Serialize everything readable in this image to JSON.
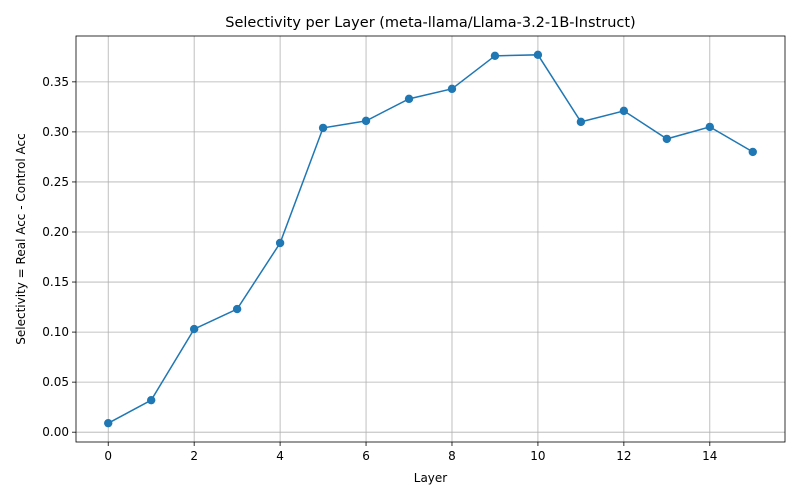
{
  "chart_data": {
    "type": "line",
    "title": "Selectivity per Layer (meta-llama/Llama-3.2-1B-Instruct)",
    "xlabel": "Layer",
    "ylabel": "Selectivity = Real Acc - Control Acc",
    "x": [
      0,
      1,
      2,
      3,
      4,
      5,
      6,
      7,
      8,
      9,
      10,
      11,
      12,
      13,
      14,
      15
    ],
    "series": [
      {
        "values": [
          0.009,
          0.032,
          0.103,
          0.123,
          0.189,
          0.304,
          0.311,
          0.333,
          0.343,
          0.376,
          0.377,
          0.31,
          0.321,
          0.293,
          0.305,
          0.28
        ],
        "color": "#1f77b4",
        "marker": "circle"
      }
    ],
    "xlim": [
      -0.75,
      15.75
    ],
    "ylim": [
      -0.0098,
      0.3958
    ],
    "xticks": [
      0,
      2,
      4,
      6,
      8,
      10,
      12,
      14
    ],
    "xtick_labels": [
      "0",
      "2",
      "4",
      "6",
      "8",
      "10",
      "12",
      "14"
    ],
    "yticks": [
      0.0,
      0.05,
      0.1,
      0.15,
      0.2,
      0.25,
      0.3,
      0.35
    ],
    "ytick_labels": [
      "0.00",
      "0.05",
      "0.10",
      "0.15",
      "0.20",
      "0.25",
      "0.30",
      "0.35"
    ],
    "grid": true,
    "legend": "none"
  }
}
